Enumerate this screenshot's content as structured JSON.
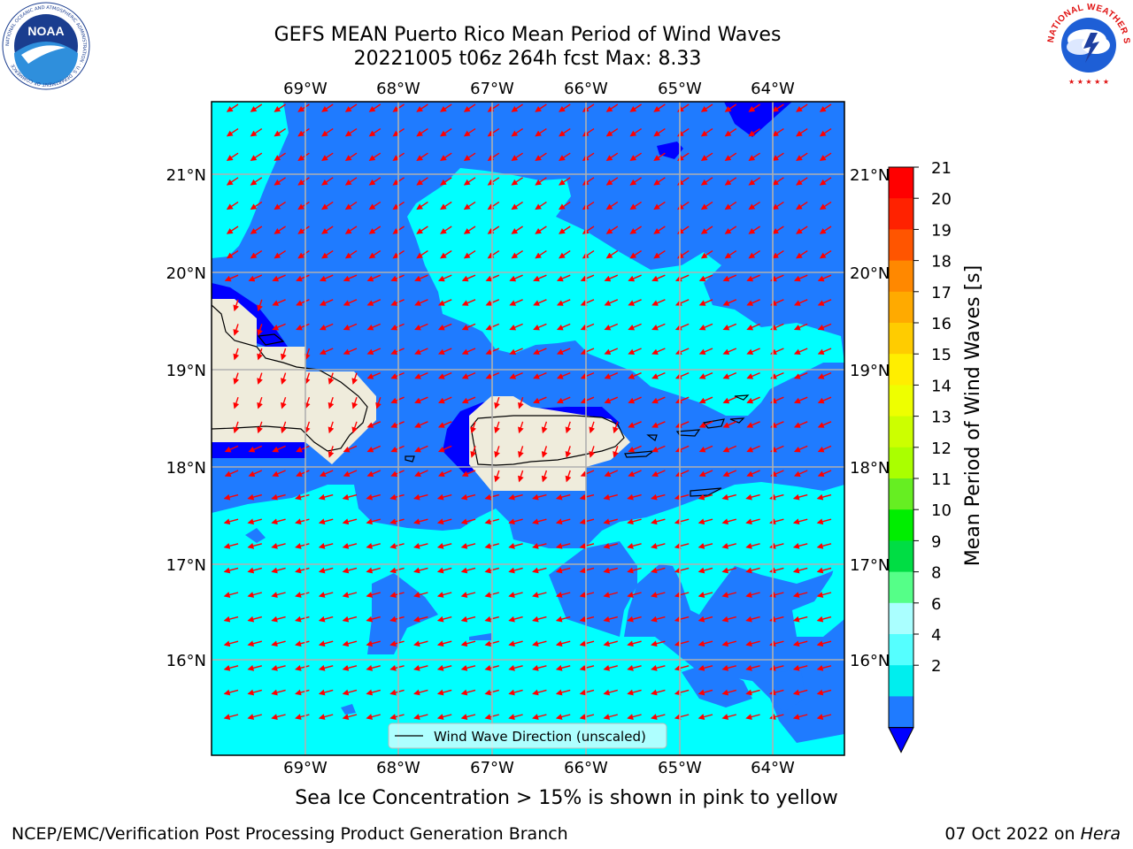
{
  "header": {
    "title_line1": "GEFS MEAN Puerto Rico Mean Period of Wind Waves",
    "title_line2": "20221005 t06z 264h fcst   Max: 8.33"
  },
  "logos": {
    "noaa_text": "NOAA",
    "noaa_ring_text": "NATIONAL OCEANIC AND ATMOSPHERIC ADMINISTRATION · U.S. DEPARTMENT OF COMMERCE",
    "nws_ring_text": "NATIONAL WEATHER SERVICE"
  },
  "map": {
    "lon_labels": [
      "69°W",
      "68°W",
      "67°W",
      "66°W",
      "65°W",
      "64°W"
    ],
    "lat_labels": [
      "21°N",
      "20°N",
      "19°N",
      "18°N",
      "17°N",
      "16°N"
    ],
    "legend_label": "Wind Wave Direction (unscaled)",
    "colors": {
      "band_2_4": "#1f7bff",
      "band_4_6": "#00ffff",
      "below_2": "#0000ff",
      "land": "#efecdc",
      "arrow": "#ff0000",
      "grid": "#b0b0b0"
    }
  },
  "colorbar": {
    "label": "Mean Period of Wind Waves [s]",
    "ticks": [
      "21",
      "20",
      "19",
      "18",
      "17",
      "16",
      "15",
      "14",
      "13",
      "12",
      "11",
      "10",
      "9",
      "8",
      "6",
      "4",
      "2"
    ],
    "colors": [
      "#ff0000",
      "#ff2200",
      "#ff5500",
      "#ff8800",
      "#ffaa00",
      "#ffcc00",
      "#ffee00",
      "#eeff00",
      "#ccff00",
      "#aaff00",
      "#66ee22",
      "#00ee00",
      "#00dd44",
      "#55ff88",
      "#aaffff",
      "#55ffff",
      "#00eeee",
      "#1f7bff"
    ],
    "under_color": "#0000ff"
  },
  "footer": {
    "note": "Sea Ice Concentration > 15% is shown in pink to yellow",
    "credit": "NCEP/EMC/Verification Post Processing Product Generation Branch",
    "date": "07 Oct 2022 on ",
    "host": "Hera"
  }
}
